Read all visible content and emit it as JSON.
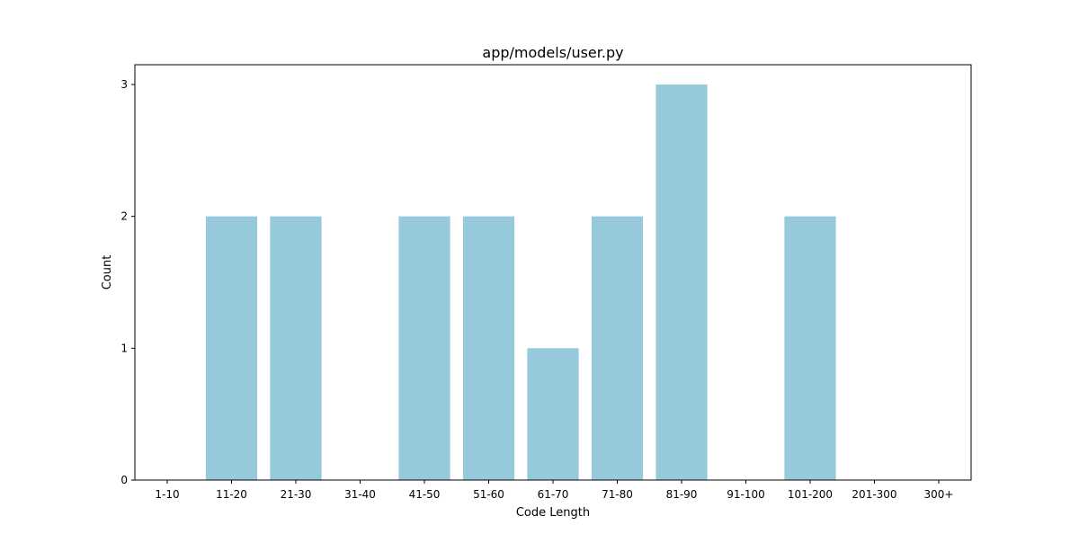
{
  "chart_data": {
    "type": "bar",
    "title": "app/models/user.py",
    "xlabel": "Code Length",
    "ylabel": "Count",
    "categories": [
      "1-10",
      "11-20",
      "21-30",
      "31-40",
      "41-50",
      "51-60",
      "61-70",
      "71-80",
      "81-90",
      "91-100",
      "101-200",
      "201-300",
      "300+"
    ],
    "values": [
      0,
      2,
      2,
      0,
      2,
      2,
      1,
      2,
      3,
      0,
      2,
      0,
      0
    ],
    "ylim": [
      0,
      3.15
    ],
    "yticks": [
      0,
      1,
      2,
      3
    ],
    "grid": false,
    "bar_color": "#96c9dc"
  }
}
